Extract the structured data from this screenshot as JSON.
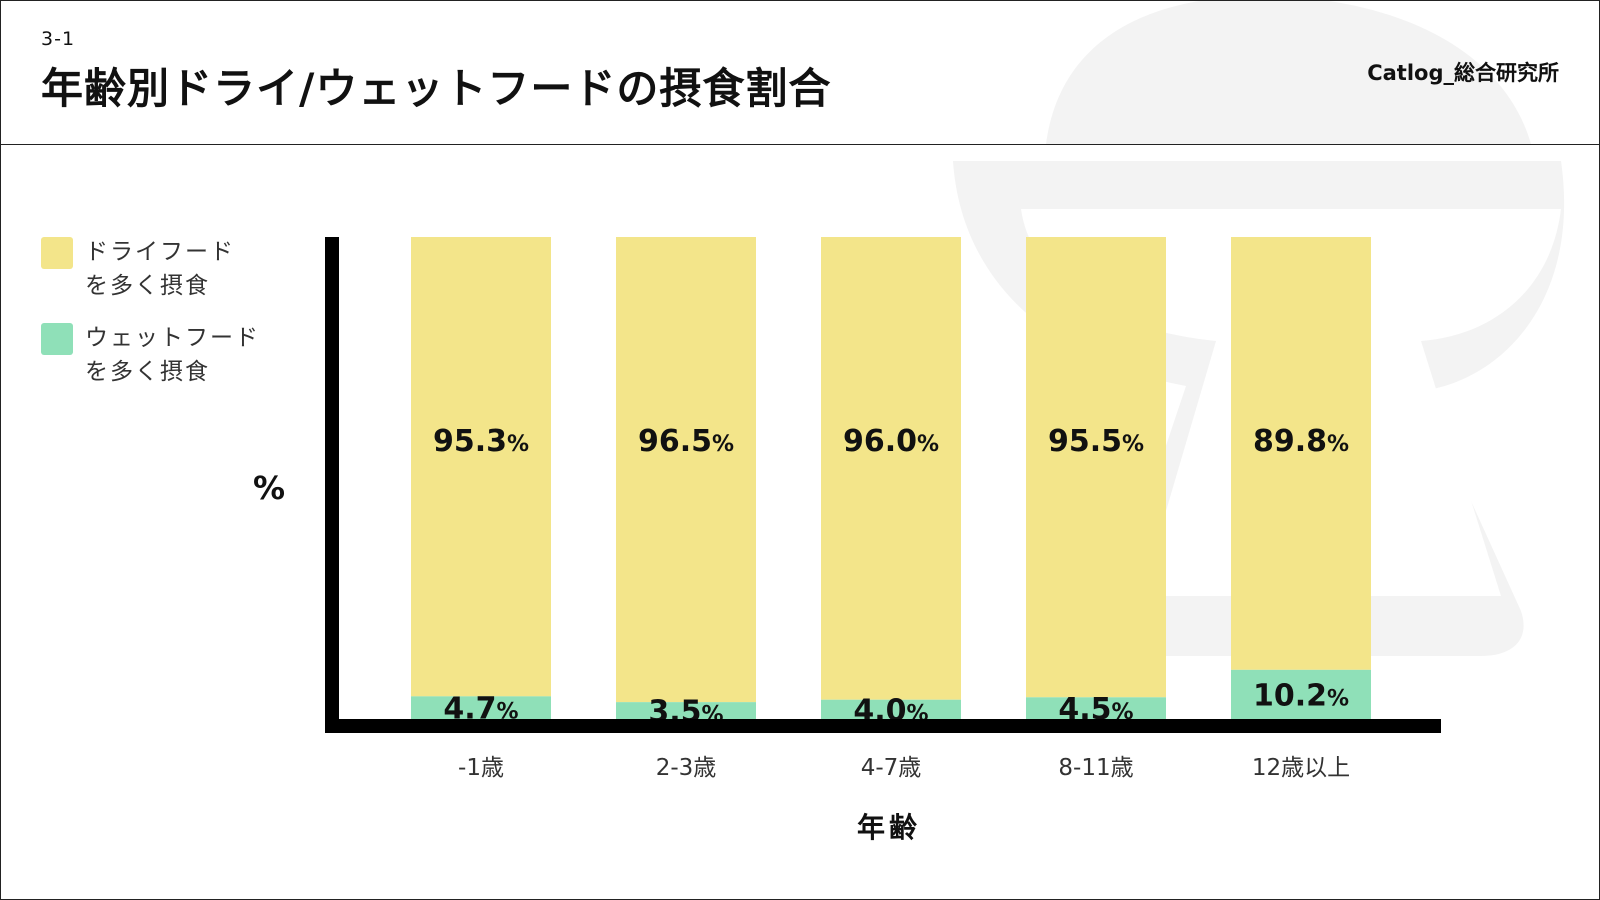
{
  "header": {
    "section_number": "3-1",
    "title": "年齢別ドライ/ウェットフードの摂食割合",
    "brand": "Catlog_総合研究所"
  },
  "legend": [
    {
      "label": "ドライフード\nを多く摂食",
      "color": "#F3E58A"
    },
    {
      "label": "ウェットフード\nを多く摂食",
      "color": "#8FE0B8"
    }
  ],
  "chart_data": {
    "type": "bar",
    "stacked": true,
    "title": "年齢別ドライ/ウェットフードの摂食割合",
    "xlabel": "年齢",
    "ylabel": "%",
    "ylim": [
      0,
      100
    ],
    "categories": [
      "-1歳",
      "2-3歳",
      "4-7歳",
      "8-11歳",
      "12歳以上"
    ],
    "series": [
      {
        "name": "ウェットフードを多く摂食",
        "values": [
          4.7,
          3.5,
          4.0,
          4.5,
          10.2
        ],
        "labels": [
          "4.7",
          "3.5",
          "4.0",
          "4.5",
          "10.2"
        ],
        "color": "#8FE0B8"
      },
      {
        "name": "ドライフードを多く摂食",
        "values": [
          95.3,
          96.5,
          96.0,
          95.5,
          89.8
        ],
        "labels": [
          "95.3",
          "96.5",
          "96.0",
          "95.5",
          "89.8"
        ],
        "color": "#F3E58A"
      }
    ],
    "value_suffix": "%",
    "axis_color": "#000000"
  }
}
